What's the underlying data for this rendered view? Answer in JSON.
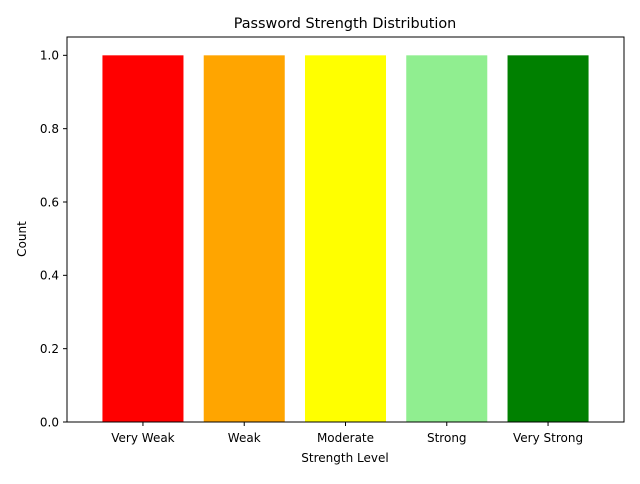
{
  "chart_data": {
    "type": "bar",
    "title": "Password Strength Distribution",
    "xlabel": "Strength Level",
    "ylabel": "Count",
    "categories": [
      "Very Weak",
      "Weak",
      "Moderate",
      "Strong",
      "Very Strong"
    ],
    "values": [
      1,
      1,
      1,
      1,
      1
    ],
    "colors": [
      "#ff0000",
      "#ffa500",
      "#ffff00",
      "#90ee90",
      "#008000"
    ],
    "ylim": [
      0,
      1.05
    ],
    "yticks": [
      "0.0",
      "0.2",
      "0.4",
      "0.6",
      "0.8",
      "1.0"
    ],
    "grid": false,
    "legend": "none"
  }
}
